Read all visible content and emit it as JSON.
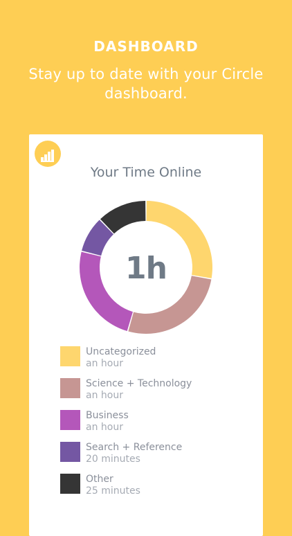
{
  "header": {
    "title": "DASHBOARD",
    "subtitle": "Stay up to date with your Circle dashboard."
  },
  "card": {
    "badge_icon": "bar-chart-icon",
    "title": "Your Time Online",
    "center_value": "1h"
  },
  "colors": {
    "background": "#FECE54",
    "uncategorized": "#FED66E",
    "science_technology": "#C69693",
    "business": "#B457BA",
    "search_reference": "#7457A3",
    "other": "#353535",
    "text_primary": "#6f7a86"
  },
  "chart_data": {
    "type": "pie",
    "categories": [
      "Uncategorized",
      "Science + Technology",
      "Business",
      "Search + Reference",
      "Other"
    ],
    "values": [
      25,
      24,
      22,
      8,
      11
    ],
    "legend_placement": "bottom"
  },
  "legend": [
    {
      "label": "Uncategorized",
      "sub": "an hour",
      "color": "#FED66E"
    },
    {
      "label": "Science + Technology",
      "sub": "an hour",
      "color": "#C69693"
    },
    {
      "label": "Business",
      "sub": "an hour",
      "color": "#B457BA"
    },
    {
      "label": "Search + Reference",
      "sub": "20 minutes",
      "color": "#7457A3"
    },
    {
      "label": "Other",
      "sub": "25 minutes",
      "color": "#353535"
    }
  ]
}
